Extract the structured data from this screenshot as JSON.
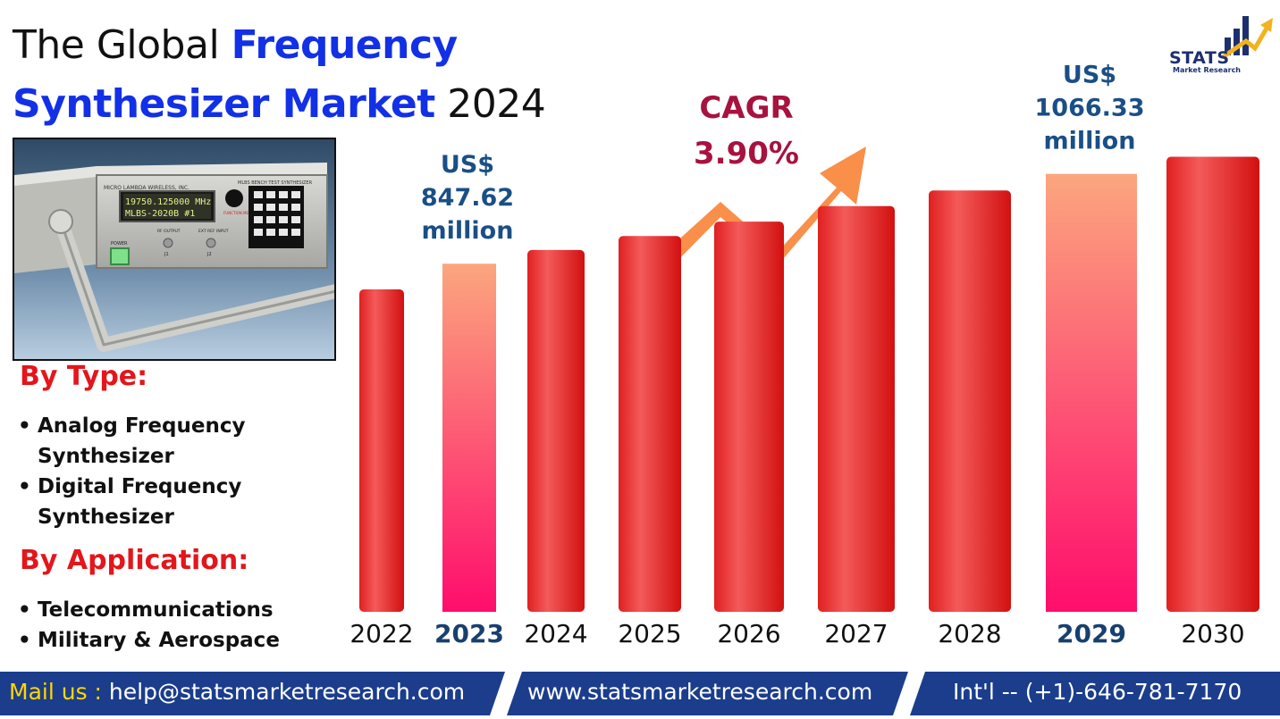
{
  "header": {
    "title_part1": "The Global ",
    "title_part2": "Frequency",
    "title_part3": "Synthesizer Market",
    "title_part4": " 2024"
  },
  "logo": {
    "name": "STATS",
    "subtitle": "Market Research"
  },
  "product_image": {
    "brand_text": "MICRO LAMBDA WIRELESS, INC.",
    "model_text": "MLBS BENCH TEST SYNTHESIZER",
    "display_line1": "19750.125000 MHz",
    "display_line2": "MLBS-2020B     #1",
    "label_power": "POWER",
    "label_rf": "RF OUTPUT",
    "label_ext": "EXT REF INPUT",
    "label_j1": "J1",
    "label_j2": "J2",
    "label_menu": "FUNCTION MENU"
  },
  "segments": {
    "type_heading": "By Type:",
    "type_items": [
      "Analog Frequency Synthesizer",
      "Digital Frequency Synthesizer"
    ],
    "application_heading": "By Application:",
    "application_items": [
      "Telecommunications",
      "Military & Aerospace"
    ]
  },
  "chart_data": {
    "type": "bar",
    "categories": [
      "2022",
      "2023",
      "2024",
      "2025",
      "2026",
      "2027",
      "2028",
      "2029",
      "2030"
    ],
    "values": [
      785,
      847.62,
      881,
      915,
      950,
      988,
      1026,
      1066.33,
      1108
    ],
    "highlighted": [
      "2023",
      "2029"
    ],
    "ylim": [
      0,
      1120
    ],
    "annotations": [
      {
        "category": "2023",
        "lines": [
          "US$",
          "847.62",
          "million"
        ]
      },
      {
        "category": "2029",
        "lines": [
          "US$",
          "1066.33",
          "million"
        ]
      }
    ],
    "cagr_label": "CAGR",
    "cagr_value": "3.90%",
    "colors": {
      "bar_top": "#f24a4a",
      "bar_bottom": "#dc1414",
      "highlight_top": "#fba67e",
      "highlight_bottom": "#ff0d6c",
      "annotation": "#1a4f86",
      "cagr": "#a8123e",
      "arrow": "#f98f49",
      "highlight_tick": "#17406f"
    }
  },
  "footer": {
    "mail_label": "Mail us : ",
    "email": "help@statsmarketresearch.com",
    "website": "www.statsmarketresearch.com",
    "phone": "Int'l -- (+1)-646-781-7170",
    "colors": {
      "band": "#1b3d8c",
      "label": "#ffd700"
    }
  }
}
